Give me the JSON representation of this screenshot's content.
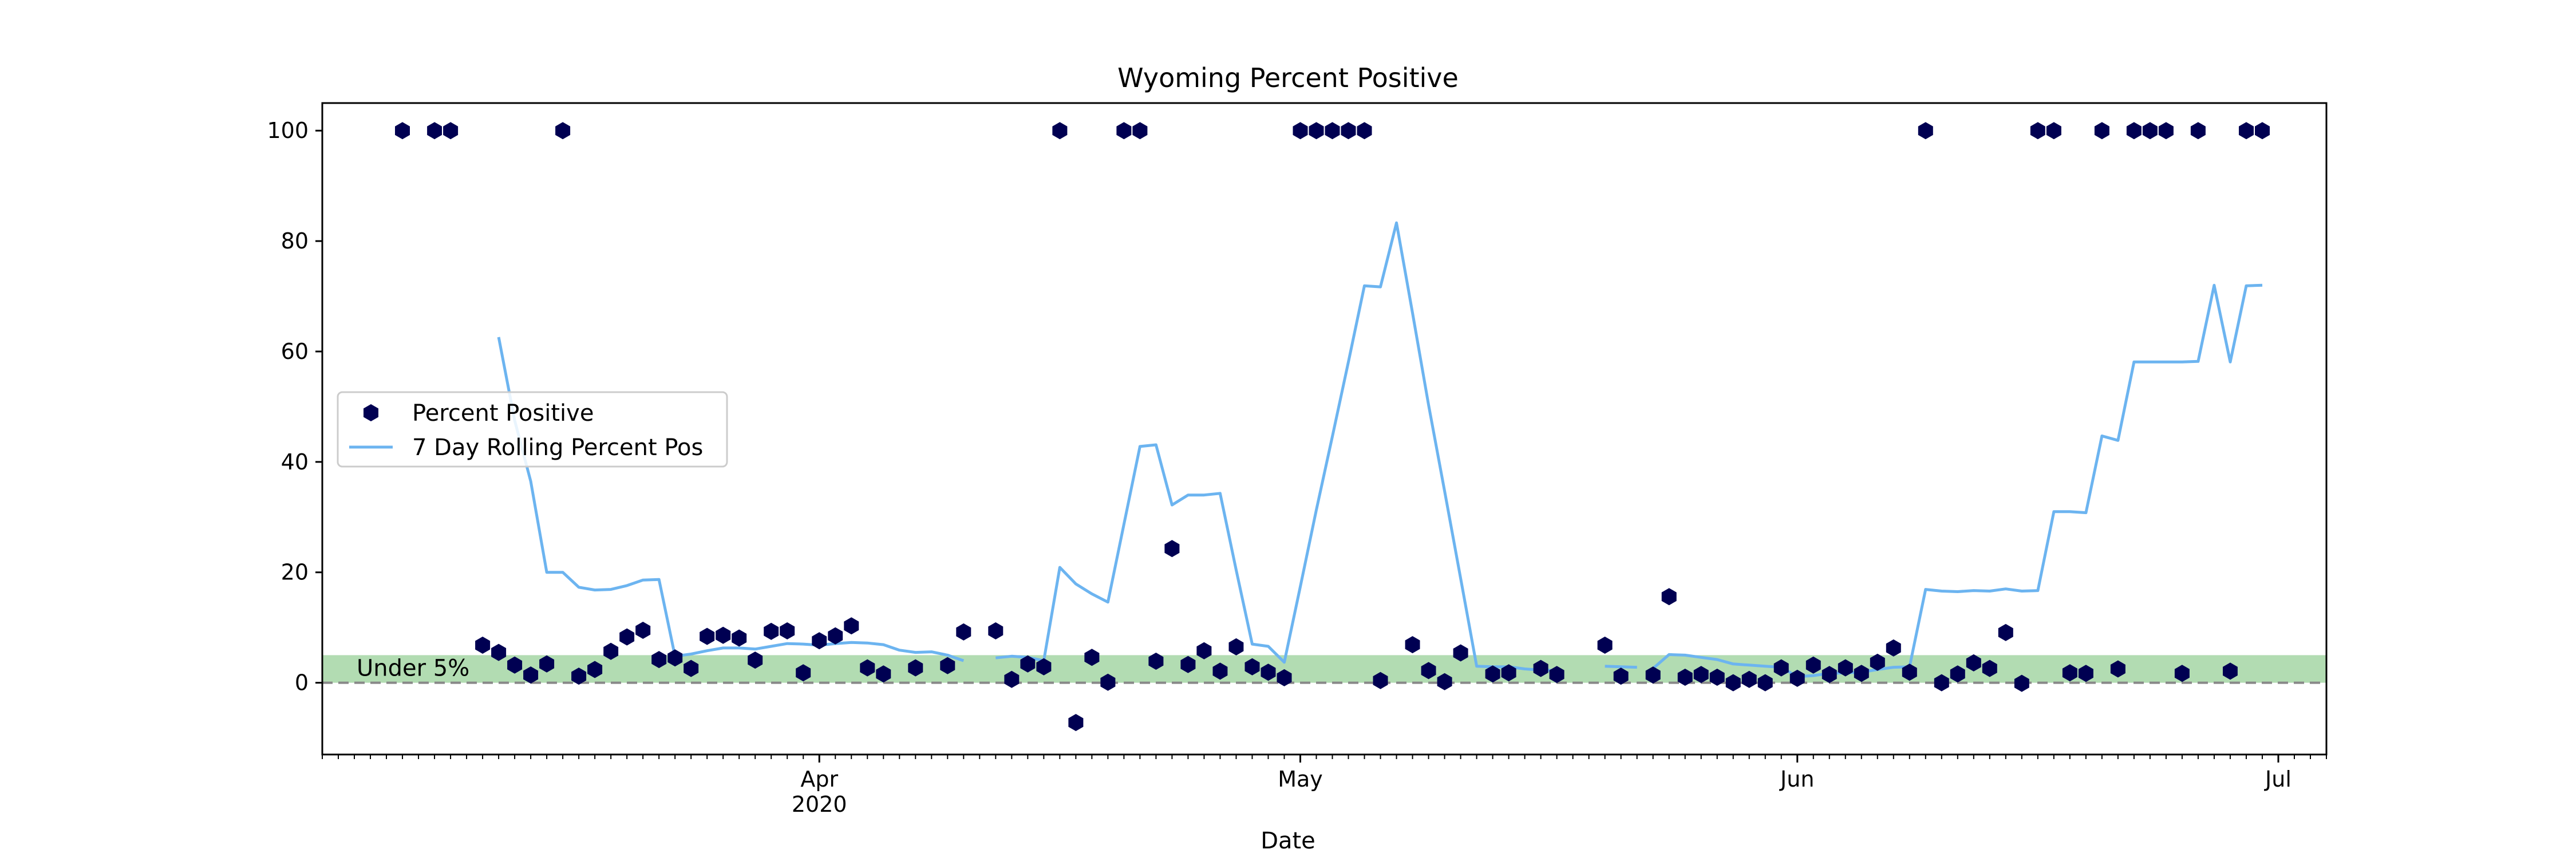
{
  "chart_data": {
    "type": "line",
    "title": "Wyoming Percent Positive",
    "xlabel": "Date",
    "ylabel": "",
    "xlim": [
      "2020-03-01",
      "2020-07-04"
    ],
    "ylim": [
      -13,
      105
    ],
    "x_ticks": [
      {
        "date": "2020-04-01",
        "label": "Apr",
        "sublabel": "2020"
      },
      {
        "date": "2020-05-01",
        "label": "May",
        "sublabel": ""
      },
      {
        "date": "2020-06-01",
        "label": "Jun",
        "sublabel": ""
      },
      {
        "date": "2020-07-01",
        "label": "Jul",
        "sublabel": ""
      }
    ],
    "y_ticks": [
      0,
      20,
      40,
      60,
      80,
      100
    ],
    "band": {
      "from": 0,
      "to": 5,
      "label": "Under 5%",
      "color": "#b2dcb2"
    },
    "reference_line": {
      "y": 0,
      "style": "dashed",
      "color": "#888888"
    },
    "legend_position": "center-left",
    "series": [
      {
        "name": "Percent Positive",
        "kind": "scatter",
        "marker": "hexagon",
        "color": "#000052",
        "points": [
          [
            "2020-03-06",
            100
          ],
          [
            "2020-03-08",
            100
          ],
          [
            "2020-03-09",
            100
          ],
          [
            "2020-03-11",
            6.8
          ],
          [
            "2020-03-12",
            5.5
          ],
          [
            "2020-03-13",
            3.2
          ],
          [
            "2020-03-14",
            1.4
          ],
          [
            "2020-03-15",
            3.4
          ],
          [
            "2020-03-16",
            100
          ],
          [
            "2020-03-17",
            1.2
          ],
          [
            "2020-03-18",
            2.4
          ],
          [
            "2020-03-19",
            5.7
          ],
          [
            "2020-03-20",
            8.3
          ],
          [
            "2020-03-21",
            9.5
          ],
          [
            "2020-03-22",
            4.2
          ],
          [
            "2020-03-23",
            4.5
          ],
          [
            "2020-03-24",
            2.6
          ],
          [
            "2020-03-25",
            8.4
          ],
          [
            "2020-03-26",
            8.6
          ],
          [
            "2020-03-27",
            8.1
          ],
          [
            "2020-03-28",
            4.1
          ],
          [
            "2020-03-29",
            9.3
          ],
          [
            "2020-03-30",
            9.4
          ],
          [
            "2020-03-31",
            1.8
          ],
          [
            "2020-04-01",
            7.6
          ],
          [
            "2020-04-02",
            8.5
          ],
          [
            "2020-04-03",
            10.3
          ],
          [
            "2020-04-04",
            2.7
          ],
          [
            "2020-04-05",
            1.6
          ],
          [
            "2020-04-07",
            2.7
          ],
          [
            "2020-04-09",
            3.1
          ],
          [
            "2020-04-10",
            9.2
          ],
          [
            "2020-04-12",
            9.4
          ],
          [
            "2020-04-13",
            0.6
          ],
          [
            "2020-04-14",
            3.4
          ],
          [
            "2020-04-15",
            2.9
          ],
          [
            "2020-04-16",
            100
          ],
          [
            "2020-04-17",
            -7.2
          ],
          [
            "2020-04-18",
            4.6
          ],
          [
            "2020-04-19",
            0.1
          ],
          [
            "2020-04-20",
            100
          ],
          [
            "2020-04-21",
            100
          ],
          [
            "2020-04-22",
            3.9
          ],
          [
            "2020-04-23",
            24.3
          ],
          [
            "2020-04-24",
            3.3
          ],
          [
            "2020-04-25",
            5.8
          ],
          [
            "2020-04-26",
            2.1
          ],
          [
            "2020-04-27",
            6.5
          ],
          [
            "2020-04-28",
            2.9
          ],
          [
            "2020-04-29",
            1.9
          ],
          [
            "2020-04-30",
            0.9
          ],
          [
            "2020-05-01",
            100
          ],
          [
            "2020-05-02",
            100
          ],
          [
            "2020-05-03",
            100
          ],
          [
            "2020-05-04",
            100
          ],
          [
            "2020-05-05",
            100
          ],
          [
            "2020-05-06",
            0.4
          ],
          [
            "2020-05-08",
            6.9
          ],
          [
            "2020-05-09",
            2.2
          ],
          [
            "2020-05-10",
            0.2
          ],
          [
            "2020-05-11",
            5.4
          ],
          [
            "2020-05-13",
            1.6
          ],
          [
            "2020-05-14",
            1.8
          ],
          [
            "2020-05-16",
            2.6
          ],
          [
            "2020-05-17",
            1.5
          ],
          [
            "2020-05-20",
            6.8
          ],
          [
            "2020-05-21",
            1.2
          ],
          [
            "2020-05-23",
            1.4
          ],
          [
            "2020-05-24",
            15.6
          ],
          [
            "2020-05-25",
            1.0
          ],
          [
            "2020-05-26",
            1.5
          ],
          [
            "2020-05-27",
            1.0
          ],
          [
            "2020-05-28",
            0.0
          ],
          [
            "2020-05-29",
            0.6
          ],
          [
            "2020-05-30",
            0.0
          ],
          [
            "2020-05-31",
            2.7
          ],
          [
            "2020-06-01",
            0.8
          ],
          [
            "2020-06-02",
            3.2
          ],
          [
            "2020-06-03",
            1.5
          ],
          [
            "2020-06-04",
            2.7
          ],
          [
            "2020-06-05",
            1.7
          ],
          [
            "2020-06-06",
            3.7
          ],
          [
            "2020-06-07",
            6.3
          ],
          [
            "2020-06-08",
            1.9
          ],
          [
            "2020-06-09",
            100
          ],
          [
            "2020-06-10",
            0.0
          ],
          [
            "2020-06-11",
            1.6
          ],
          [
            "2020-06-12",
            3.6
          ],
          [
            "2020-06-13",
            2.6
          ],
          [
            "2020-06-14",
            9.1
          ],
          [
            "2020-06-15",
            -0.1
          ],
          [
            "2020-06-16",
            100
          ],
          [
            "2020-06-17",
            100
          ],
          [
            "2020-06-18",
            1.8
          ],
          [
            "2020-06-19",
            1.7
          ],
          [
            "2020-06-20",
            100
          ],
          [
            "2020-06-21",
            2.5
          ],
          [
            "2020-06-22",
            100
          ],
          [
            "2020-06-23",
            100
          ],
          [
            "2020-06-24",
            100
          ],
          [
            "2020-06-25",
            1.7
          ],
          [
            "2020-06-26",
            100
          ],
          [
            "2020-06-28",
            2.1
          ],
          [
            "2020-06-29",
            100
          ],
          [
            "2020-06-30",
            100
          ]
        ]
      },
      {
        "name": "7 Day Rolling Percent Pos",
        "kind": "line",
        "color": "#6cb4f0",
        "segments": [
          [
            [
              "2020-03-12",
              62.6
            ],
            [
              "2020-03-13",
              47.5
            ],
            [
              "2020-03-14",
              36.5
            ],
            [
              "2020-03-15",
              20.0
            ],
            [
              "2020-03-16",
              20.0
            ],
            [
              "2020-03-17",
              17.3
            ],
            [
              "2020-03-18",
              16.8
            ],
            [
              "2020-03-19",
              16.9
            ],
            [
              "2020-03-20",
              17.6
            ],
            [
              "2020-03-21",
              18.6
            ],
            [
              "2020-03-22",
              18.7
            ],
            [
              "2020-03-23",
              4.8
            ],
            [
              "2020-03-24",
              5.2
            ],
            [
              "2020-03-25",
              5.8
            ],
            [
              "2020-03-26",
              6.3
            ],
            [
              "2020-03-27",
              6.3
            ],
            [
              "2020-03-28",
              6.1
            ],
            [
              "2020-03-29",
              6.6
            ],
            [
              "2020-03-30",
              7.1
            ],
            [
              "2020-03-31",
              7.0
            ],
            [
              "2020-04-01",
              6.8
            ],
            [
              "2020-04-02",
              7.1
            ],
            [
              "2020-04-03",
              7.3
            ],
            [
              "2020-04-04",
              7.2
            ],
            [
              "2020-04-05",
              6.9
            ],
            [
              "2020-04-06",
              5.9
            ],
            [
              "2020-04-07",
              5.5
            ],
            [
              "2020-04-08",
              5.6
            ],
            [
              "2020-04-09",
              5.0
            ],
            [
              "2020-04-10",
              4.0
            ]
          ],
          [
            [
              "2020-04-12",
              4.5
            ],
            [
              "2020-04-13",
              4.8
            ],
            [
              "2020-04-14",
              4.6
            ],
            [
              "2020-04-15",
              4.0
            ],
            [
              "2020-04-16",
              20.9
            ],
            [
              "2020-04-17",
              17.9
            ],
            [
              "2020-04-18",
              16.1
            ],
            [
              "2020-04-19",
              14.6
            ],
            [
              "2020-04-20",
              28.7
            ],
            [
              "2020-04-21",
              42.8
            ],
            [
              "2020-04-22",
              43.1
            ],
            [
              "2020-04-23",
              32.2
            ],
            [
              "2020-04-24",
              34.0
            ],
            [
              "2020-04-25",
              34.0
            ],
            [
              "2020-04-26",
              34.3
            ],
            [
              "2020-04-27",
              20.4
            ],
            [
              "2020-04-28",
              7.0
            ],
            [
              "2020-04-29",
              6.6
            ],
            [
              "2020-04-30",
              3.7
            ],
            [
              "2020-05-01",
              17.4
            ],
            [
              "2020-05-02",
              31.3
            ],
            [
              "2020-05-03",
              44.6
            ],
            [
              "2020-05-04",
              58.1
            ],
            [
              "2020-05-05",
              71.9
            ],
            [
              "2020-05-06",
              71.7
            ],
            [
              "2020-05-07",
              83.3
            ],
            [
              "2020-05-08",
              67.0
            ],
            [
              "2020-05-09",
              50.3
            ],
            [
              "2020-05-10",
              34.7
            ],
            [
              "2020-05-11",
              18.9
            ],
            [
              "2020-05-12",
              3.0
            ],
            [
              "2020-05-13",
              2.9
            ],
            [
              "2020-05-14",
              2.9
            ],
            [
              "2020-05-15",
              2.5
            ],
            [
              "2020-05-16",
              2.3
            ],
            [
              "2020-05-17",
              2.2
            ]
          ],
          [
            [
              "2020-05-20",
              3.0
            ],
            [
              "2020-05-21",
              2.9
            ],
            [
              "2020-05-22",
              2.8
            ]
          ],
          [
            [
              "2020-05-23",
              2.6
            ],
            [
              "2020-05-24",
              5.1
            ],
            [
              "2020-05-25",
              5.0
            ],
            [
              "2020-05-26",
              4.6
            ],
            [
              "2020-05-27",
              4.2
            ],
            [
              "2020-05-28",
              3.4
            ],
            [
              "2020-05-29",
              3.2
            ],
            [
              "2020-05-30",
              3.0
            ],
            [
              "2020-05-31",
              2.8
            ],
            [
              "2020-06-01",
              1.1
            ],
            [
              "2020-06-02",
              1.3
            ],
            [
              "2020-06-03",
              1.7
            ],
            [
              "2020-06-04",
              1.8
            ],
            [
              "2020-06-05",
              1.9
            ],
            [
              "2020-06-06",
              2.4
            ],
            [
              "2020-06-07",
              2.8
            ],
            [
              "2020-06-08",
              2.9
            ],
            [
              "2020-06-09",
              16.9
            ],
            [
              "2020-06-10",
              16.6
            ],
            [
              "2020-06-11",
              16.5
            ],
            [
              "2020-06-12",
              16.7
            ],
            [
              "2020-06-13",
              16.6
            ],
            [
              "2020-06-14",
              17.0
            ],
            [
              "2020-06-15",
              16.6
            ],
            [
              "2020-06-16",
              16.7
            ],
            [
              "2020-06-17",
              31.0
            ],
            [
              "2020-06-18",
              31.0
            ],
            [
              "2020-06-19",
              30.8
            ],
            [
              "2020-06-20",
              44.7
            ],
            [
              "2020-06-21",
              43.9
            ],
            [
              "2020-06-22",
              58.1
            ],
            [
              "2020-06-23",
              58.1
            ],
            [
              "2020-06-24",
              58.1
            ],
            [
              "2020-06-25",
              58.1
            ],
            [
              "2020-06-26",
              58.2
            ],
            [
              "2020-06-27",
              72.0
            ],
            [
              "2020-06-28",
              58.1
            ],
            [
              "2020-06-29",
              71.9
            ],
            [
              "2020-06-30",
              72.0
            ]
          ]
        ]
      }
    ]
  }
}
